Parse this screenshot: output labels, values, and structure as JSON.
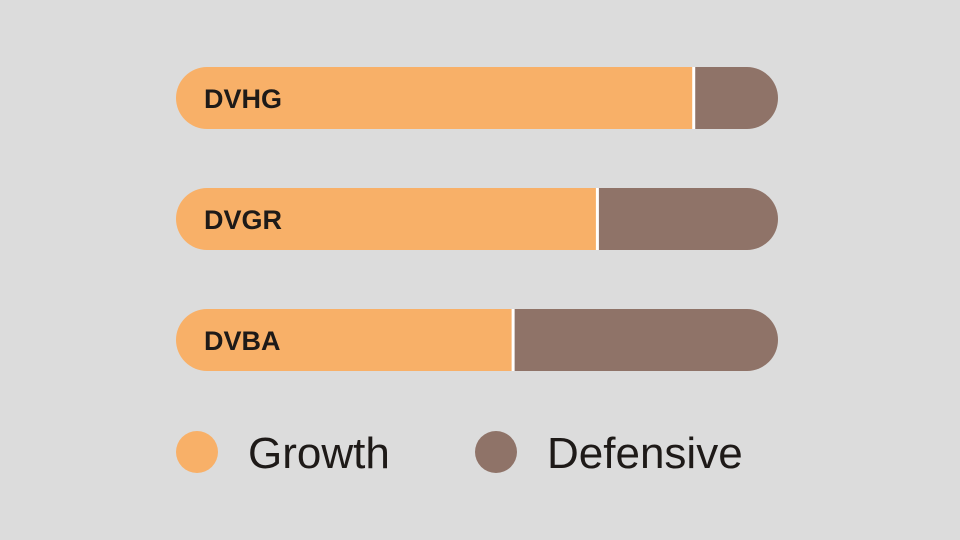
{
  "colors": {
    "background": "#dcdcdc",
    "growth": "#f8b068",
    "defensive": "#8f7368",
    "divider": "#ffffff",
    "text": "#1e1a18"
  },
  "chart_data": {
    "type": "bar",
    "orientation": "horizontal",
    "stacked": true,
    "normalized_percent": true,
    "categories": [
      "DVHG",
      "DVGR",
      "DVBA"
    ],
    "series": [
      {
        "name": "Growth",
        "values": [
          86,
          70,
          56
        ]
      },
      {
        "name": "Defensive",
        "values": [
          14,
          30,
          44
        ]
      }
    ],
    "legend_position": "bottom",
    "grid": false
  }
}
